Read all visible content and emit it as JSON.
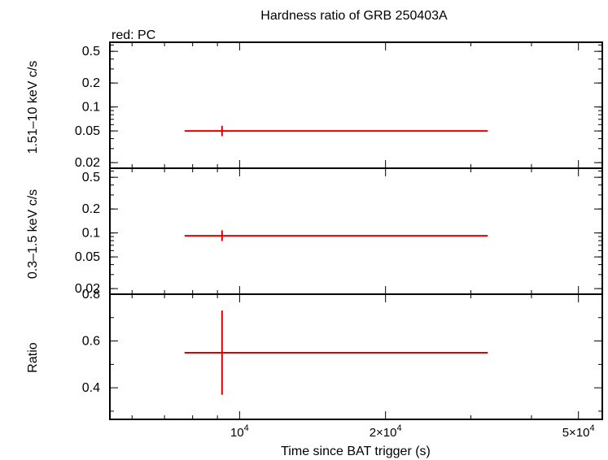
{
  "chart_data": {
    "type": "scatter",
    "title": "Hardness ratio of GRB 250403A",
    "legend_note": "red: PC",
    "xlabel": "Time since BAT trigger (s)",
    "x_scale": "log",
    "xlim": [
      5400,
      56000
    ],
    "x_ticks_major": [
      {
        "value": 10000,
        "mantissa": "",
        "exp": "4"
      },
      {
        "value": 20000,
        "mantissa": "2×",
        "exp": "4"
      },
      {
        "value": 50000,
        "mantissa": "5×",
        "exp": "4"
      }
    ],
    "x_ticks_minor": [
      6000,
      7000,
      8000,
      9000,
      30000,
      40000
    ],
    "color": "#e00000",
    "panels": [
      {
        "id": "hard",
        "ylabel": "1.51–10 keV c/s",
        "y_scale": "log",
        "ylim": [
          0.017,
          0.65
        ],
        "y_ticks": [
          {
            "value": 0.02,
            "label": "0.02"
          },
          {
            "value": 0.05,
            "label": "0.05"
          },
          {
            "value": 0.1,
            "label": "0.1"
          },
          {
            "value": 0.2,
            "label": "0.2"
          },
          {
            "value": 0.5,
            "label": "0.5"
          }
        ],
        "point": {
          "x": 9200,
          "x_lo": 7700,
          "x_hi": 32500,
          "y": 0.05,
          "y_lo": 0.043,
          "y_hi": 0.058
        }
      },
      {
        "id": "soft",
        "ylabel": "0.3–1.5 keV c/s",
        "y_scale": "log",
        "ylim": [
          0.017,
          0.65
        ],
        "y_ticks": [
          {
            "value": 0.02,
            "label": "0.02"
          },
          {
            "value": 0.05,
            "label": "0.05"
          },
          {
            "value": 0.1,
            "label": "0.1"
          },
          {
            "value": 0.2,
            "label": "0.2"
          },
          {
            "value": 0.5,
            "label": "0.5"
          }
        ],
        "point": {
          "x": 9200,
          "x_lo": 7700,
          "x_hi": 32500,
          "y": 0.092,
          "y_lo": 0.079,
          "y_hi": 0.108
        }
      },
      {
        "id": "ratio",
        "ylabel": "Ratio",
        "y_scale": "linear",
        "ylim": [
          0.265,
          0.8
        ],
        "y_ticks": [
          {
            "value": 0.4,
            "label": "0.4"
          },
          {
            "value": 0.6,
            "label": "0.6"
          },
          {
            "value": 0.8,
            "label": "0.8"
          }
        ],
        "y_ticks_minor": [
          0.3,
          0.5,
          0.7
        ],
        "point": {
          "x": 9200,
          "x_lo": 7700,
          "x_hi": 32500,
          "y": 0.55,
          "y_lo": 0.37,
          "y_hi": 0.73
        }
      }
    ]
  }
}
